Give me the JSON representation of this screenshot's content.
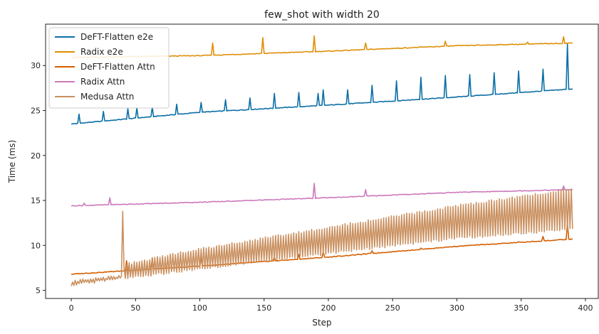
{
  "chart_data": {
    "type": "line",
    "title": "few_shot with width 20",
    "xlabel": "Step",
    "ylabel": "Time (ms)",
    "xlim": [
      -20,
      410
    ],
    "ylim": [
      4.1,
      34.6
    ],
    "x_ticks": [
      0,
      50,
      100,
      150,
      200,
      250,
      300,
      350,
      400
    ],
    "y_ticks": [
      5,
      10,
      15,
      20,
      25,
      30
    ],
    "legend_position": "top-left",
    "grid": false,
    "x_domain": [
      0,
      390
    ],
    "series": [
      {
        "name": "DeFT-Flatten e2e",
        "color": "#0b6fa6",
        "baseline": [
          [
            0,
            23.5
          ],
          [
            100,
            24.8
          ],
          [
            200,
            25.6
          ],
          [
            300,
            26.5
          ],
          [
            390,
            27.4
          ]
        ],
        "spikes": [
          [
            6,
            24.6
          ],
          [
            25,
            24.9
          ],
          [
            44,
            25.2
          ],
          [
            51,
            25.3
          ],
          [
            63,
            25.4
          ],
          [
            82,
            25.7
          ],
          [
            101,
            25.9
          ],
          [
            120,
            26.2
          ],
          [
            139,
            26.4
          ],
          [
            158,
            26.9
          ],
          [
            177,
            27.0
          ],
          [
            192,
            26.9
          ],
          [
            196,
            27.3
          ],
          [
            215,
            27.3
          ],
          [
            234,
            27.8
          ],
          [
            253,
            28.3
          ],
          [
            272,
            28.7
          ],
          [
            291,
            28.9
          ],
          [
            310,
            29.0
          ],
          [
            329,
            29.2
          ],
          [
            348,
            29.4
          ],
          [
            367,
            29.6
          ],
          [
            386,
            32.4
          ]
        ]
      },
      {
        "name": "Radix e2e",
        "color": "#de8f05",
        "baseline": [
          [
            0,
            30.9
          ],
          [
            100,
            31.1
          ],
          [
            200,
            31.6
          ],
          [
            300,
            32.2
          ],
          [
            390,
            32.5
          ]
        ],
        "spikes": [
          [
            110,
            32.5
          ],
          [
            149,
            33.1
          ],
          [
            189,
            33.3
          ],
          [
            229,
            32.5
          ],
          [
            291,
            32.7
          ],
          [
            355,
            32.6
          ],
          [
            383,
            33.2
          ]
        ]
      },
      {
        "name": "DeFT-Flatten Attn",
        "color": "#d55e00",
        "baseline": [
          [
            0,
            6.8
          ],
          [
            100,
            7.7
          ],
          [
            200,
            8.7
          ],
          [
            300,
            9.9
          ],
          [
            390,
            10.7
          ]
        ],
        "spikes": [
          [
            43,
            8.3
          ],
          [
            63,
            8.6
          ],
          [
            101,
            8.6
          ],
          [
            158,
            8.7
          ],
          [
            177,
            9.0
          ],
          [
            196,
            9.3
          ],
          [
            234,
            9.4
          ],
          [
            272,
            9.7
          ],
          [
            310,
            10.0
          ],
          [
            348,
            10.4
          ],
          [
            367,
            11.0
          ],
          [
            386,
            12.5
          ]
        ]
      },
      {
        "name": "Radix Attn",
        "color": "#cc78bc",
        "baseline": [
          [
            0,
            14.4
          ],
          [
            100,
            14.8
          ],
          [
            200,
            15.3
          ],
          [
            300,
            15.9
          ],
          [
            390,
            16.2
          ]
        ],
        "spikes": [
          [
            10,
            14.7
          ],
          [
            30,
            15.3
          ],
          [
            189,
            16.9
          ],
          [
            229,
            16.2
          ],
          [
            383,
            16.6
          ]
        ]
      },
      {
        "name": "Medusa Attn",
        "color": "#ca9161",
        "low": [
          [
            0,
            5.6
          ],
          [
            40,
            6.3
          ],
          [
            100,
            7.4
          ],
          [
            200,
            9.1
          ],
          [
            300,
            10.8
          ],
          [
            390,
            11.8
          ]
        ],
        "high": [
          [
            0,
            6.0
          ],
          [
            39,
            6.6
          ],
          [
            42,
            7.9
          ],
          [
            100,
            9.6
          ],
          [
            200,
            12.0
          ],
          [
            300,
            14.4
          ],
          [
            390,
            16.3
          ]
        ],
        "spikes": [
          [
            40,
            13.8
          ]
        ]
      }
    ]
  }
}
